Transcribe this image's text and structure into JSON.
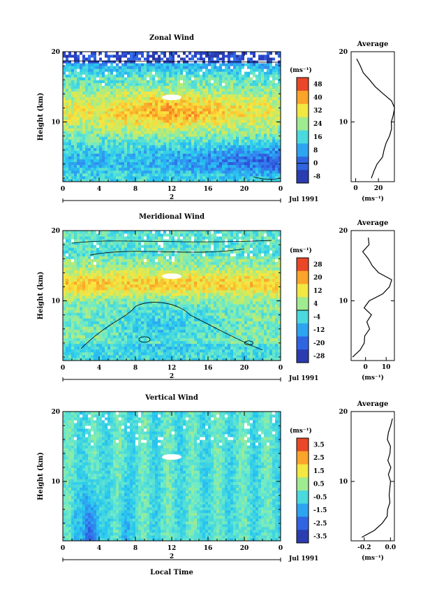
{
  "figure": {
    "xlabel": "Local Time",
    "date_label": "Jul 1991",
    "day_label": "2",
    "unit_label": "(ms⁻¹)",
    "avg_title": "Average",
    "height_label": "Height (km)"
  },
  "chart_data": [
    {
      "type": "heatmap",
      "title": "Zonal Wind",
      "xlabel": "",
      "ylabel": "Height (km)",
      "x_ticks": [
        "0",
        "4",
        "8",
        "12",
        "16",
        "20",
        "0"
      ],
      "x_range": [
        0,
        24
      ],
      "y_ticks": [
        "20",
        "10"
      ],
      "y_range": [
        1.5,
        20
      ],
      "colorbar": {
        "unit": "(ms⁻¹)",
        "ticks": [
          "48",
          "40",
          "32",
          "24",
          "16",
          "8",
          "0",
          "-8"
        ],
        "range": [
          -12,
          52
        ],
        "contour_level": 0
      },
      "field_description_values": {
        "jet_core_height_km": 11,
        "jet_core_speed": 40,
        "surface_wind": 8,
        "upper_wind": 0
      },
      "profile": {
        "title": "Average",
        "x_ticks": [
          "0",
          "20"
        ],
        "x_range": [
          -4,
          34
        ],
        "heights_km": [
          2,
          3,
          4,
          5,
          6,
          7,
          8,
          9,
          10,
          11,
          12,
          13,
          14,
          15,
          16,
          17,
          18,
          19
        ],
        "values": [
          13,
          16,
          19,
          24,
          25,
          27,
          30,
          31,
          32,
          33,
          34,
          32,
          25,
          18,
          12,
          7,
          4,
          1
        ]
      }
    },
    {
      "type": "heatmap",
      "title": "Meridional Wind",
      "xlabel": "",
      "ylabel": "Height (km)",
      "x_ticks": [
        "0",
        "4",
        "8",
        "12",
        "16",
        "20",
        "0"
      ],
      "x_range": [
        0,
        24
      ],
      "y_ticks": [
        "20",
        "10"
      ],
      "y_range": [
        1.5,
        20
      ],
      "colorbar": {
        "unit": "(ms⁻¹)",
        "ticks": [
          "28",
          "20",
          "12",
          "4",
          "-4",
          "-12",
          "-20",
          "-28"
        ],
        "range": [
          -32,
          32
        ],
        "contour_level": 0
      },
      "field_description_values": {
        "positive_band_height_km": 12,
        "positive_band_speed": 14,
        "negative_region_speed": -6
      },
      "profile": {
        "title": "Average",
        "x_ticks": [
          "0",
          "10"
        ],
        "x_range": [
          -7,
          14
        ],
        "heights_km": [
          2,
          3,
          4,
          5,
          6,
          7,
          8,
          9,
          10,
          11,
          12,
          13,
          14,
          15,
          16,
          17,
          18,
          19
        ],
        "values": [
          -6,
          -3,
          -1,
          0,
          2,
          1,
          3,
          -1,
          2,
          8,
          12,
          13,
          6,
          3,
          1,
          -1,
          2,
          1
        ]
      }
    },
    {
      "type": "heatmap",
      "title": "Vertical Wind",
      "xlabel": "Local Time",
      "ylabel": "Height (km)",
      "x_ticks": [
        "0",
        "4",
        "8",
        "12",
        "16",
        "20",
        "0"
      ],
      "x_range": [
        0,
        24
      ],
      "y_ticks": [
        "20",
        "10"
      ],
      "y_range": [
        1.5,
        20
      ],
      "colorbar": {
        "unit": "(ms⁻¹)",
        "ticks": [
          "3.5",
          "2.5",
          "1.5",
          "0.5",
          "-0.5",
          "-1.5",
          "-2.5",
          "-3.5"
        ],
        "range": [
          -4,
          4
        ]
      },
      "field_description_values": {
        "background": -0.3,
        "streak_value": -2.5
      },
      "profile": {
        "title": "Average",
        "x_ticks": [
          "-0.2",
          "0.0"
        ],
        "x_range": [
          -0.3,
          0.03
        ],
        "heights_km": [
          2,
          3,
          4,
          5,
          6,
          7,
          8,
          9,
          10,
          11,
          12,
          13,
          14,
          15,
          16,
          17,
          18,
          19
        ],
        "values": [
          -0.22,
          -0.12,
          -0.06,
          -0.03,
          -0.02,
          -0.01,
          -0.01,
          0.0,
          0.0,
          -0.01,
          0.0,
          -0.02,
          -0.01,
          0.0,
          -0.02,
          -0.01,
          0.0,
          0.01
        ]
      }
    }
  ]
}
